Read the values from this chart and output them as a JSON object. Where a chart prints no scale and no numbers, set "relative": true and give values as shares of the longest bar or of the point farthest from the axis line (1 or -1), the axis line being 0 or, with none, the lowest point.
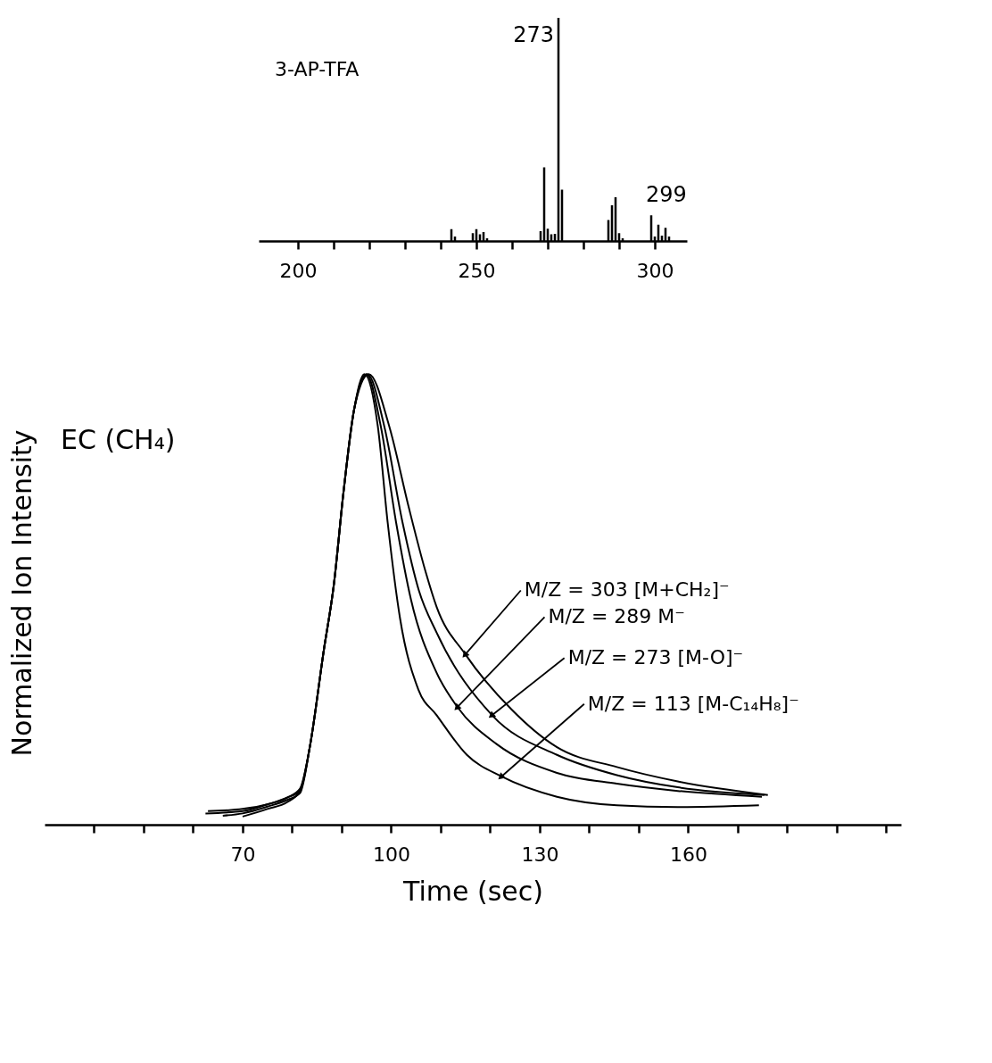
{
  "chart_data": [
    {
      "type": "bar",
      "title": "3-AP-TFA",
      "relative": true,
      "color": "#000000",
      "x": [
        243,
        244,
        249,
        250,
        251,
        252,
        253,
        268,
        269,
        270,
        271,
        272,
        273,
        274,
        287,
        288,
        289,
        290,
        291,
        299,
        300,
        301,
        302,
        303,
        304
      ],
      "values": [
        0.053,
        0.02,
        0.035,
        0.053,
        0.03,
        0.04,
        0.012,
        0.044,
        0.33,
        0.055,
        0.03,
        0.032,
        1.0,
        0.23,
        0.094,
        0.16,
        0.196,
        0.035,
        0.012,
        0.115,
        0.02,
        0.073,
        0.024,
        0.059,
        0.02
      ],
      "xlim": [
        189,
        309
      ],
      "xticks": [
        200,
        {
          "value": 210,
          "label": null
        },
        {
          "value": 220,
          "label": null
        },
        {
          "value": 230,
          "label": null
        },
        {
          "value": 240,
          "label": null
        },
        250,
        {
          "value": 260,
          "label": null
        },
        {
          "value": 270,
          "label": null
        },
        {
          "value": 280,
          "label": null
        },
        {
          "value": 290,
          "label": null
        },
        300
      ],
      "annotations": [
        {
          "text": "273",
          "x": 273,
          "y": 1.0
        },
        {
          "text": "299",
          "x": 299,
          "y": 0.115
        }
      ],
      "grid": false
    },
    {
      "type": "line",
      "relative": true,
      "xlabel": "Time (sec)",
      "ylabel": "Normalized Ion Intensity",
      "line_style": "solid",
      "marker": "none",
      "annotations": [
        "EC (CH₄)"
      ],
      "xlim": [
        30,
        203
      ],
      "xticks": [
        {
          "value": 40,
          "label": null
        },
        {
          "value": 50,
          "label": null
        },
        {
          "value": 60,
          "label": null
        },
        70,
        {
          "value": 80,
          "label": null
        },
        {
          "value": 90,
          "label": null
        },
        100,
        {
          "value": 110,
          "label": null
        },
        {
          "value": 120,
          "label": null
        },
        130,
        {
          "value": 140,
          "label": null
        },
        {
          "value": 150,
          "label": null
        },
        160,
        {
          "value": 170,
          "label": null
        },
        {
          "value": 180,
          "label": null
        },
        {
          "value": 190,
          "label": null
        },
        {
          "value": 200,
          "label": null
        }
      ],
      "series": [
        {
          "name": "M/Z = 303 [M+CH₂]⁻",
          "color": "#000000",
          "x": [
            70,
            75,
            79,
            81.6,
            83.6,
            86.4,
            88.4,
            90.4,
            92.5,
            95.5,
            99.6,
            103.5,
            107,
            109.2,
            115,
            124.3,
            133.5,
            145.6,
            157.9,
            176.1
          ],
          "values": [
            0.018,
            0.035,
            0.05,
            0.075,
            0.174,
            0.387,
            0.53,
            0.74,
            0.92,
            1.0,
            0.885,
            0.707,
            0.56,
            0.483,
            0.378,
            0.256,
            0.172,
            0.128,
            0.096,
            0.066
          ]
        },
        {
          "name": "M/Z = 289 M⁻",
          "color": "#000000",
          "x": [
            63,
            70,
            75,
            79,
            81.6,
            83.6,
            86.4,
            88.4,
            90.4,
            92.5,
            95,
            97.9,
            101,
            104,
            109.2,
            113.4,
            121.3,
            133.5,
            145.6,
            157.9,
            174.9
          ],
          "values": [
            0.03,
            0.035,
            0.045,
            0.06,
            0.08,
            0.174,
            0.387,
            0.53,
            0.74,
            0.92,
            1.0,
            0.885,
            0.671,
            0.5,
            0.337,
            0.261,
            0.179,
            0.115,
            0.091,
            0.075,
            0.062
          ]
        },
        {
          "name": "M/Z = 273 [M-O]⁻",
          "color": "#000000",
          "x": [
            66,
            70,
            75,
            79,
            81.6,
            83.6,
            86.4,
            88.4,
            90.4,
            92.5,
            95.2,
            98.6,
            102.3,
            105.6,
            109.2,
            120.4,
            133.5,
            145.6,
            157.9,
            175.4
          ],
          "values": [
            0.02,
            0.025,
            0.04,
            0.055,
            0.07,
            0.174,
            0.387,
            0.53,
            0.74,
            0.92,
            1.0,
            0.885,
            0.671,
            0.52,
            0.426,
            0.243,
            0.155,
            0.11,
            0.083,
            0.066
          ]
        },
        {
          "name": "M/Z = 113 [M-C₁₄H₈]⁻",
          "color": "#000000",
          "x": [
            62.5,
            70,
            75,
            79,
            81.6,
            83.6,
            86.4,
            88.4,
            90.4,
            92.5,
            94.6,
            97.3,
            99.3,
            101.8,
            105.5,
            109.2,
            115.3,
            122.3,
            133.5,
            145.6,
            157.9,
            174.3
          ],
          "values": [
            0.025,
            0.03,
            0.045,
            0.06,
            0.075,
            0.174,
            0.387,
            0.53,
            0.74,
            0.92,
            1.0,
            0.885,
            0.671,
            0.458,
            0.3,
            0.243,
            0.155,
            0.107,
            0.062,
            0.043,
            0.039,
            0.043
          ]
        }
      ],
      "grid": false
    }
  ]
}
